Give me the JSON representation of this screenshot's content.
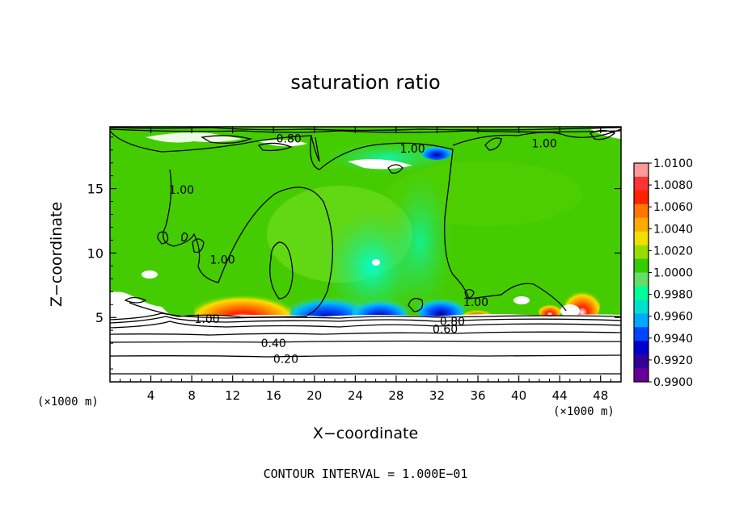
{
  "chart_data": {
    "type": "heatmap",
    "title": "saturation ratio",
    "xlabel": "X−coordinate",
    "ylabel": "Z−coordinate",
    "x_unit_left": "(×1000 m)",
    "x_unit_right": "(×1000 m)",
    "xlim": [
      0,
      50
    ],
    "ylim": [
      0,
      19.8
    ],
    "x_ticks": [
      4,
      8,
      12,
      16,
      20,
      24,
      28,
      32,
      36,
      40,
      44,
      48
    ],
    "y_ticks": [
      5,
      10,
      15
    ],
    "colorbar": {
      "labels": [
        "1.0100",
        "1.0080",
        "1.0060",
        "1.0040",
        "1.0020",
        "1.0000",
        "0.9980",
        "0.9960",
        "0.9940",
        "0.9920",
        "0.9900"
      ],
      "colors": [
        "#ff9999",
        "#ff3333",
        "#ff2200",
        "#ff7700",
        "#ffaa00",
        "#f0e000",
        "#99dd00",
        "#33cc00",
        "#66dd66",
        "#00ff99",
        "#00e0cc",
        "#00aaff",
        "#0044ff",
        "#0000cc",
        "#330099",
        "#660099"
      ]
    },
    "contour_labels": [
      {
        "text": "0.80",
        "x": 17.5,
        "y": 18.9
      },
      {
        "text": "1.00",
        "x": 29.6,
        "y": 18.1
      },
      {
        "text": "1.00",
        "x": 42.5,
        "y": 18.5
      },
      {
        "text": "1.00",
        "x": 7.0,
        "y": 14.9
      },
      {
        "text": "1.00",
        "x": 11.0,
        "y": 9.5
      },
      {
        "text": "1.00",
        "x": 35.8,
        "y": 6.2
      },
      {
        "text": "1.00",
        "x": 9.5,
        "y": 4.9
      },
      {
        "text": "0.80",
        "x": 33.5,
        "y": 4.7
      },
      {
        "text": "0.60",
        "x": 32.8,
        "y": 4.1
      },
      {
        "text": "0.40",
        "x": 16.0,
        "y": 3.0
      },
      {
        "text": "0.20",
        "x": 17.2,
        "y": 1.8
      }
    ],
    "footer": "CONTOUR INTERVAL = 1.000E−01"
  }
}
